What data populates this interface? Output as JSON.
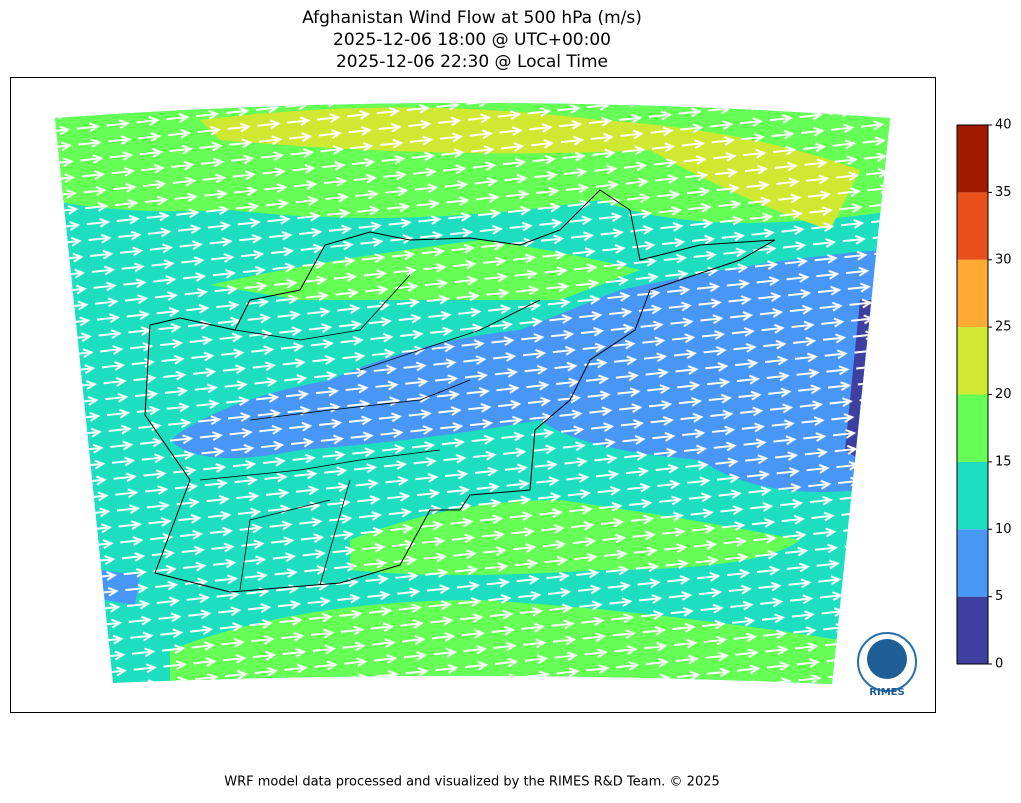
{
  "title": [
    "Afghanistan Wind Flow at 500 hPa (m/s)",
    "2025-12-06 18:00 @ UTC+00:00",
    "2025-12-06 22:30 @ Local Time"
  ],
  "colorbar": {
    "levels": [
      0,
      5,
      10,
      15,
      20,
      25,
      30,
      35,
      40
    ],
    "colors": [
      "#3f3f9f",
      "#4896f6",
      "#1ddfc0",
      "#66ff55",
      "#cfe832",
      "#ffaa33",
      "#e8521a",
      "#a01a00"
    ]
  },
  "logo": "RIMES",
  "footer": "WRF model data processed and visualized by the RIMES R&D Team. © 2025"
}
